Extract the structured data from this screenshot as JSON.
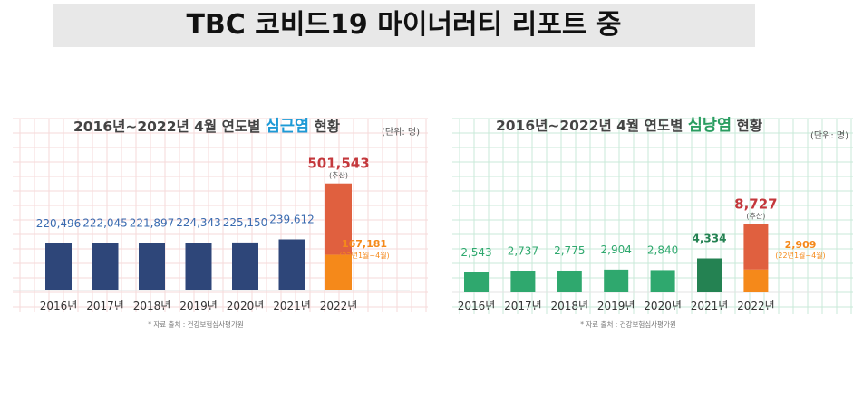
{
  "header": {
    "title": "TBC 코비드19 마이너러티 리포트 중"
  },
  "chart_data": [
    {
      "type": "bar",
      "title_prefix": "2016년~2022년 4월 연도별 ",
      "title_highlight": "심근염",
      "title_suffix": " 현황",
      "unit_label": "(단위: 명)",
      "categories": [
        "2016년",
        "2017년",
        "2018년",
        "2019년",
        "2020년",
        "2021년",
        "2022년"
      ],
      "values": [
        220496,
        222045,
        221897,
        224343,
        225150,
        239612,
        501543
      ],
      "value_labels": [
        "220,496",
        "222,045",
        "221,897",
        "224,343",
        "225,150",
        "239,612",
        "501,543"
      ],
      "partial_2022": {
        "value": 167181,
        "label": "167,181",
        "note": "(22년1월~4월)"
      },
      "estimate_note": "(추산)",
      "source": "* 자료 출처 : 건강보험심사평가원",
      "colors": {
        "bar": "#2e4679",
        "estimate": "#e0603f",
        "partial": "#f5891a",
        "highlight": "#1e9ad6",
        "label": "#3a6bb0",
        "last_label": "#c4383c"
      }
    },
    {
      "type": "bar",
      "title_prefix": "2016년~2022년 4월 연도별 ",
      "title_highlight": "심낭염",
      "title_suffix": " 현황",
      "unit_label": "(단위: 명)",
      "categories": [
        "2016년",
        "2017년",
        "2018년",
        "2019년",
        "2020년",
        "2021년",
        "2022년"
      ],
      "values": [
        2543,
        2737,
        2775,
        2904,
        2840,
        4334,
        8727
      ],
      "value_labels": [
        "2,543",
        "2,737",
        "2,775",
        "2,904",
        "2,840",
        "4,334",
        "8,727"
      ],
      "partial_2022": {
        "value": 2909,
        "label": "2,909",
        "note": "(22년1월~4월)"
      },
      "estimate_note": "(추산)",
      "source": "* 자료 출처 : 건강보험심사평가원",
      "colors": {
        "bar": "#2fa86e",
        "bar_2021": "#248252",
        "estimate": "#e0603f",
        "partial": "#f5891a",
        "highlight": "#2a9d61",
        "label": "#2fa86e",
        "label_2021": "#248252",
        "last_label": "#c4383c"
      }
    }
  ]
}
